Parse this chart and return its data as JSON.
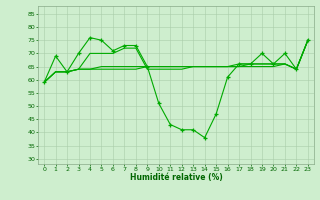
{
  "x": [
    0,
    1,
    2,
    3,
    4,
    5,
    6,
    7,
    8,
    9,
    10,
    11,
    12,
    13,
    14,
    15,
    16,
    17,
    18,
    19,
    20,
    21,
    22,
    23
  ],
  "line1": [
    59,
    69,
    63,
    70,
    76,
    75,
    71,
    73,
    73,
    65,
    51,
    43,
    41,
    41,
    38,
    47,
    61,
    66,
    66,
    70,
    66,
    70,
    64,
    75
  ],
  "line2": [
    59,
    63,
    63,
    64,
    70,
    70,
    70,
    72,
    72,
    64,
    64,
    64,
    64,
    65,
    65,
    65,
    65,
    65,
    66,
    66,
    66,
    66,
    64,
    75
  ],
  "line3": [
    59,
    63,
    63,
    64,
    64,
    65,
    65,
    65,
    65,
    65,
    65,
    65,
    65,
    65,
    65,
    65,
    65,
    66,
    66,
    66,
    66,
    66,
    64,
    75
  ],
  "line4": [
    59,
    63,
    63,
    64,
    64,
    64,
    64,
    64,
    64,
    65,
    65,
    65,
    65,
    65,
    65,
    65,
    65,
    65,
    65,
    65,
    65,
    66,
    64,
    75
  ],
  "bg_color": "#ceeece",
  "grid_color": "#aaccaa",
  "line_color": "#00aa00",
  "xlabel": "Humidité relative (%)",
  "xlim": [
    -0.5,
    23.5
  ],
  "ylim": [
    28,
    88
  ],
  "yticks": [
    30,
    35,
    40,
    45,
    50,
    55,
    60,
    65,
    70,
    75,
    80,
    85
  ],
  "xticks": [
    0,
    1,
    2,
    3,
    4,
    5,
    6,
    7,
    8,
    9,
    10,
    11,
    12,
    13,
    14,
    15,
    16,
    17,
    18,
    19,
    20,
    21,
    22,
    23
  ]
}
